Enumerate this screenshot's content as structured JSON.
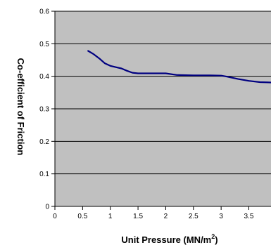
{
  "chart_data": {
    "type": "line",
    "title": "",
    "xlabel_main": "Unit Pressure (MN/m",
    "xlabel_sup": "2",
    "xlabel_end": ")",
    "ylabel": "Co-efficient of Friction",
    "xlim": [
      0,
      3.9
    ],
    "ylim": [
      0,
      0.6
    ],
    "x_ticks": [
      0,
      0.5,
      1,
      1.5,
      2,
      2.5,
      3,
      3.5
    ],
    "x_tick_labels": [
      "0",
      "0.5",
      "1",
      "1.5",
      "2",
      "2.5",
      "3",
      "3.5"
    ],
    "y_ticks": [
      0,
      0.1,
      0.2,
      0.3,
      0.4,
      0.5,
      0.6
    ],
    "y_tick_labels": [
      "0",
      "0.1",
      "0.2",
      "0.3",
      "0.4",
      "0.5",
      "0.6"
    ],
    "grid": "horizontal",
    "plot_background": "#c0c0c0",
    "line_color": "#000080",
    "series": [
      {
        "x": [
          0.6,
          0.7,
          0.8,
          0.9,
          1.0,
          1.1,
          1.2,
          1.3,
          1.4,
          1.5,
          1.7,
          2.0,
          2.2,
          2.5,
          2.8,
          3.0,
          3.1,
          3.3,
          3.5,
          3.7,
          3.9
        ],
        "values": [
          0.478,
          0.468,
          0.455,
          0.44,
          0.432,
          0.428,
          0.424,
          0.417,
          0.411,
          0.409,
          0.409,
          0.409,
          0.404,
          0.403,
          0.403,
          0.402,
          0.399,
          0.392,
          0.386,
          0.382,
          0.381
        ]
      }
    ]
  }
}
